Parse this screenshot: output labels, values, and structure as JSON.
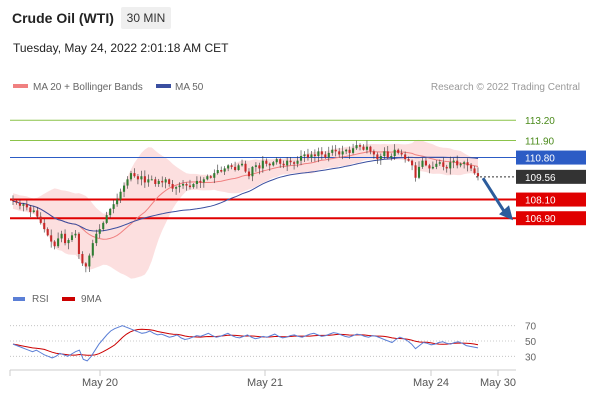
{
  "header": {
    "title": "Crude Oil (WTI)",
    "timeframe": "30 MIN",
    "timestamp": "Tuesday, May 24, 2022 2:01:18 AM CET"
  },
  "legend": {
    "ma20_label": "MA 20 + Bollinger Bands",
    "ma50_label": "MA 50",
    "copyright": "Research © 2022 Trading Central",
    "rsi_label": "RSI",
    "ma9_label": "9MA"
  },
  "colors": {
    "candle_up": "#2e7d32",
    "candle_down": "#c62828",
    "bollinger_fill": "#f9c5c5",
    "ma20": "#f08080",
    "ma50": "#3a4fa0",
    "resistance": "#8bc34a",
    "pivot": "#2c5cc5",
    "support": "#e00000",
    "current": "#333333",
    "rsi": "#5b7fd6",
    "rsi_ma": "#cc0000",
    "arrow": "#2c5c9c"
  },
  "chart_data": [
    {
      "type": "candlestick",
      "title": "Crude Oil (WTI)",
      "timeframe": "30 MIN",
      "ylim": [
        102.8,
        114.5
      ],
      "x_tick_labels": [
        "May 20",
        "May 21",
        "May 24",
        "May 30"
      ],
      "close_series": [
        108.0,
        107.9,
        107.7,
        107.8,
        107.6,
        107.3,
        107.4,
        107.0,
        106.6,
        106.2,
        105.8,
        105.4,
        105.1,
        105.6,
        105.9,
        105.3,
        105.5,
        105.8,
        105.9,
        104.6,
        104.0,
        103.8,
        104.5,
        105.3,
        105.9,
        106.2,
        106.6,
        107.1,
        107.5,
        107.8,
        108.1,
        108.6,
        109.0,
        109.4,
        109.8,
        109.6,
        109.4,
        109.6,
        109.2,
        109.4,
        109.4,
        109.1,
        109.3,
        109.2,
        109.4,
        109.1,
        108.8,
        108.9,
        109.0,
        109.1,
        109.0,
        108.9,
        109.1,
        109.3,
        109.2,
        109.4,
        109.6,
        109.5,
        109.8,
        110.0,
        109.9,
        110.1,
        110.3,
        110.2,
        110.0,
        110.3,
        110.4,
        109.9,
        109.6,
        110.2,
        110.3,
        110.1,
        110.6,
        110.4,
        110.3,
        110.5,
        110.7,
        110.4,
        110.3,
        110.6,
        110.5,
        110.4,
        110.6,
        110.9,
        111.0,
        110.8,
        111.0,
        110.9,
        111.2,
        111.0,
        110.8,
        111.1,
        111.3,
        111.2,
        111.0,
        111.2,
        111.3,
        111.1,
        111.4,
        111.6,
        111.5,
        111.3,
        111.5,
        111.2,
        111.0,
        110.7,
        110.9,
        111.2,
        110.8,
        110.9,
        111.3,
        111.1,
        111.0,
        110.7,
        110.6,
        110.3,
        109.5,
        110.2,
        110.6,
        110.3,
        110.1,
        110.2,
        110.4,
        110.5,
        110.2,
        110.1,
        110.5,
        110.6,
        110.3,
        110.4,
        110.5,
        110.3,
        110.1,
        109.8,
        109.6
      ],
      "moving_averages": [
        "MA 20 + Bollinger Bands",
        "MA 50"
      ],
      "levels": [
        {
          "value": "113.20",
          "kind": "resistance"
        },
        {
          "value": "111.90",
          "kind": "resistance"
        },
        {
          "value": "110.80",
          "kind": "pivot"
        },
        {
          "value": "109.56",
          "kind": "current"
        },
        {
          "value": "108.10",
          "kind": "support"
        },
        {
          "value": "106.90",
          "kind": "support"
        }
      ]
    },
    {
      "type": "line",
      "title": "",
      "series": [
        {
          "name": "RSI"
        },
        {
          "name": "9MA"
        }
      ],
      "ylim": [
        20,
        80
      ],
      "y_tick_labels": [
        "70",
        "50",
        "30"
      ],
      "rsi_values": [
        46,
        44,
        42,
        40,
        38,
        36,
        38,
        35,
        32,
        30,
        28,
        30,
        34,
        32,
        30,
        33,
        36,
        38,
        26,
        24,
        30,
        38,
        46,
        52,
        58,
        63,
        66,
        68,
        70,
        68,
        66,
        64,
        62,
        60,
        61,
        63,
        60,
        58,
        59,
        57,
        55,
        56,
        58,
        54,
        52,
        53,
        55,
        57,
        56,
        58,
        60,
        57,
        55,
        56,
        58,
        60,
        57,
        55,
        54,
        56,
        58,
        55,
        53,
        54,
        56,
        55,
        57,
        59,
        56,
        54,
        55,
        57,
        58,
        56,
        55,
        57,
        59,
        60,
        58,
        56,
        57,
        59,
        61,
        60,
        58,
        56,
        55,
        57,
        59,
        58,
        56,
        55,
        57,
        56,
        54,
        52,
        50,
        48,
        52,
        55,
        53,
        50,
        46,
        40,
        44,
        48,
        47,
        45,
        46,
        48,
        49,
        47,
        46,
        48,
        49,
        47,
        44,
        43,
        42,
        41
      ]
    }
  ]
}
